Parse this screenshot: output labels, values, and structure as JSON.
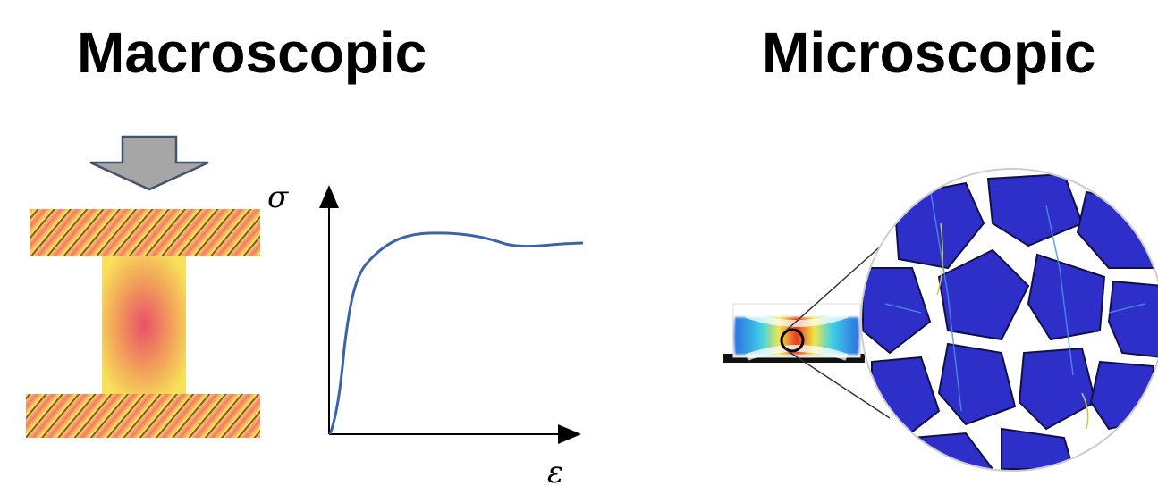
{
  "headings": {
    "left": "Macroscopic",
    "right": "Microscopic"
  },
  "graph": {
    "y_axis_symbol": "σ",
    "x_axis_symbol": "ε",
    "curve_color": "#3c62a8"
  },
  "colors": {
    "arrow_fill": "#a6a6a6",
    "arrow_stroke": "#44546a",
    "specimen_hot": "#e8506a",
    "specimen_warm": "#ffee55",
    "micro_grain": "#2e2ec8"
  }
}
